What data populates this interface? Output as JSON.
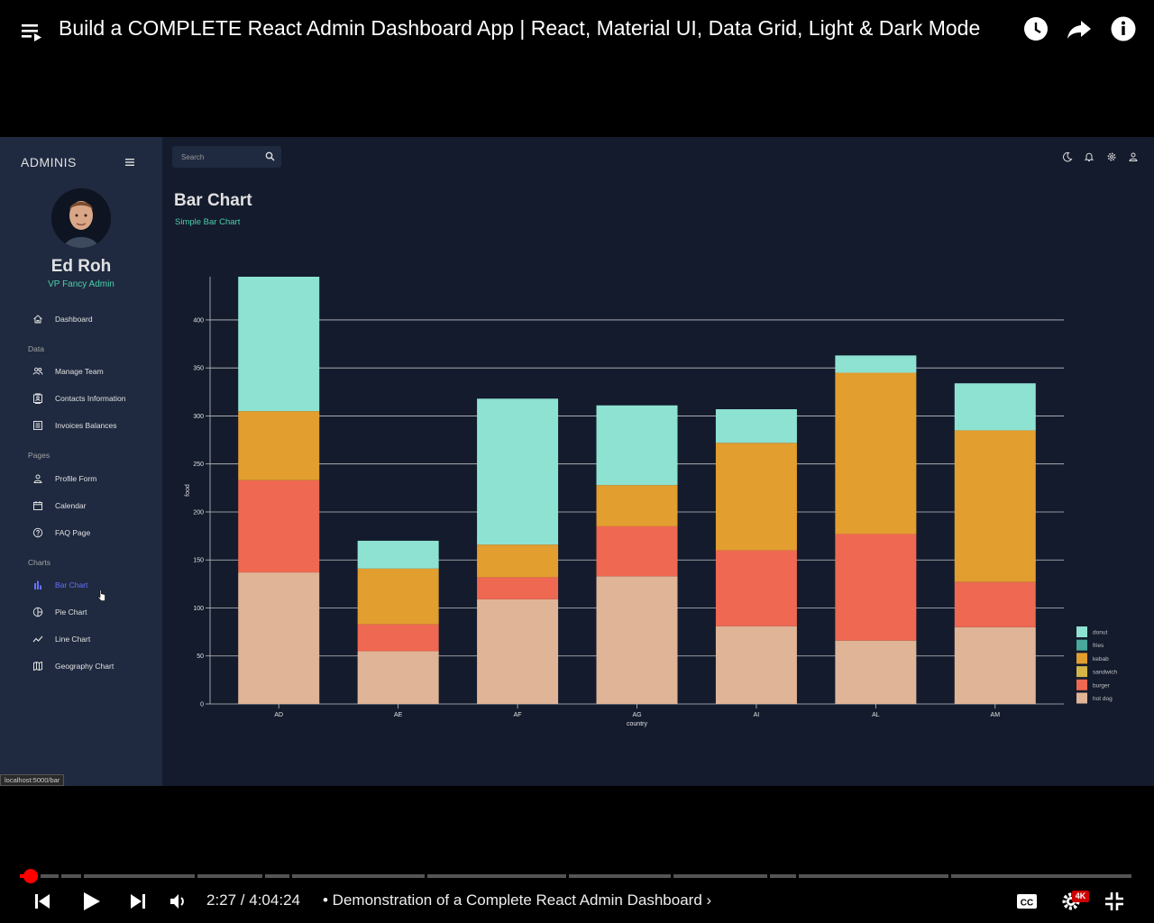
{
  "video": {
    "title": "Build a COMPLETE React Admin Dashboard App | React, Material UI, Data Grid, Light & Dark Mode",
    "time": "2:27 / 4:04:24",
    "chapter": "• Demonstration of a Complete React Admin Dashboard ›",
    "progress": 0.01,
    "quality_badge": "4K"
  },
  "sidebar": {
    "brand": "ADMINIS",
    "user_name": "Ed Roh",
    "user_role": "VP Fancy Admin",
    "items": [
      {
        "label": "Dashboard",
        "icon": "home-icon"
      },
      {
        "section": "Data"
      },
      {
        "label": "Manage Team",
        "icon": "people-icon"
      },
      {
        "label": "Contacts Information",
        "icon": "contacts-icon"
      },
      {
        "label": "Invoices Balances",
        "icon": "receipt-icon"
      },
      {
        "section": "Pages"
      },
      {
        "label": "Profile Form",
        "icon": "person-icon"
      },
      {
        "label": "Calendar",
        "icon": "calendar-icon"
      },
      {
        "label": "FAQ Page",
        "icon": "help-icon"
      },
      {
        "section": "Charts"
      },
      {
        "label": "Bar Chart",
        "icon": "bar-chart-icon",
        "active": true
      },
      {
        "label": "Pie Chart",
        "icon": "pie-chart-icon"
      },
      {
        "label": "Line Chart",
        "icon": "line-chart-icon"
      },
      {
        "label": "Geography Chart",
        "icon": "map-icon"
      }
    ]
  },
  "header": {
    "search_placeholder": "Search"
  },
  "page": {
    "title": "Bar Chart",
    "subtitle": "Simple Bar Chart"
  },
  "status_url": "localhost:5000/bar",
  "colors": {
    "accent": "#4cceac",
    "active": "#6870fa",
    "donut": "#8ee2d2",
    "fries": "#4aa79b",
    "kebab": "#e29e2f",
    "sandwich": "#d4b548",
    "burger": "#ee6852",
    "hot dog": "#e0b496"
  },
  "chart_data": {
    "type": "bar",
    "stacked": true,
    "categories": [
      "AD",
      "AE",
      "AF",
      "AG",
      "AI",
      "AL",
      "AM"
    ],
    "series": [
      {
        "name": "hot dog",
        "values": [
          137,
          55,
          109,
          133,
          81,
          66,
          80
        ]
      },
      {
        "name": "burger",
        "values": [
          96,
          28,
          23,
          52,
          79,
          111,
          47
        ]
      },
      {
        "name": "kebab",
        "values": [
          72,
          58,
          34,
          43,
          112,
          168,
          158
        ]
      },
      {
        "name": "donut",
        "values": [
          140,
          29,
          152,
          83,
          35,
          18,
          49
        ]
      }
    ],
    "legend": [
      "donut",
      "fries",
      "kebab",
      "sandwich",
      "burger",
      "hot dog"
    ],
    "xlabel": "country",
    "ylabel": "food",
    "yticks": [
      0,
      50,
      100,
      150,
      200,
      250,
      300,
      350,
      400
    ],
    "ylim": [
      0,
      445
    ],
    "grid": true,
    "legend_position": "bottom-right"
  }
}
